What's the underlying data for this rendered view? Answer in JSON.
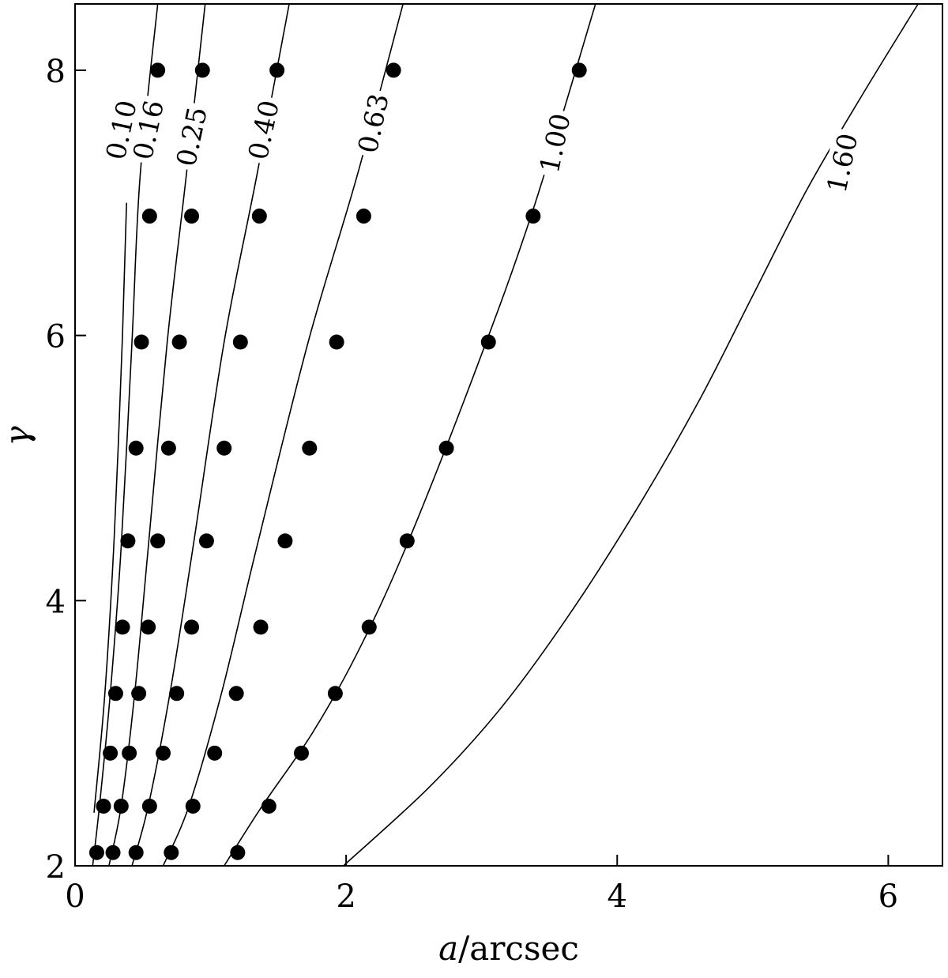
{
  "chart_data": {
    "type": "line",
    "title": "",
    "xlabel_math": "a",
    "xlabel_unit": "/arcsec",
    "ylabel": "γ",
    "xlim": [
      0,
      6.4
    ],
    "ylim": [
      2,
      8.5
    ],
    "xticks": [
      0,
      2,
      4,
      6
    ],
    "yticks": [
      2,
      4,
      6,
      8
    ],
    "grid": false,
    "legend": "none",
    "series": [
      {
        "name": "0.10",
        "curve": [
          [
            0.14,
            2.4
          ],
          [
            0.22,
            3.3
          ],
          [
            0.29,
            4.5
          ],
          [
            0.35,
            6.0
          ],
          [
            0.38,
            7.0
          ]
        ],
        "points": []
      },
      {
        "name": "0.16",
        "curve": [
          [
            0.13,
            2.0
          ],
          [
            0.18,
            2.45
          ],
          [
            0.26,
            3.3
          ],
          [
            0.34,
            4.4
          ],
          [
            0.42,
            5.95
          ],
          [
            0.48,
            7.2
          ],
          [
            0.61,
            8.5
          ]
        ],
        "points": [
          [
            0.16,
            2.1
          ],
          [
            0.21,
            2.45
          ],
          [
            0.26,
            2.85
          ],
          [
            0.3,
            3.3
          ],
          [
            0.35,
            3.8
          ],
          [
            0.39,
            4.45
          ],
          [
            0.45,
            5.15
          ],
          [
            0.49,
            5.95
          ],
          [
            0.55,
            6.9
          ],
          [
            0.61,
            8.0
          ]
        ]
      },
      {
        "name": "0.25",
        "curve": [
          [
            0.25,
            2.0
          ],
          [
            0.34,
            2.45
          ],
          [
            0.44,
            3.3
          ],
          [
            0.54,
            4.4
          ],
          [
            0.68,
            5.95
          ],
          [
            0.82,
            7.2
          ],
          [
            0.96,
            8.5
          ]
        ],
        "points": [
          [
            0.28,
            2.1
          ],
          [
            0.34,
            2.45
          ],
          [
            0.4,
            2.85
          ],
          [
            0.47,
            3.3
          ],
          [
            0.54,
            3.8
          ],
          [
            0.61,
            4.45
          ],
          [
            0.69,
            5.15
          ],
          [
            0.77,
            5.95
          ],
          [
            0.86,
            6.9
          ],
          [
            0.94,
            8.0
          ]
        ]
      },
      {
        "name": "0.40",
        "curve": [
          [
            0.42,
            2.0
          ],
          [
            0.54,
            2.45
          ],
          [
            0.7,
            3.3
          ],
          [
            0.87,
            4.4
          ],
          [
            1.1,
            5.95
          ],
          [
            1.34,
            7.2
          ],
          [
            1.58,
            8.5
          ]
        ],
        "points": [
          [
            0.45,
            2.1
          ],
          [
            0.55,
            2.45
          ],
          [
            0.65,
            2.85
          ],
          [
            0.75,
            3.3
          ],
          [
            0.86,
            3.8
          ],
          [
            0.97,
            4.45
          ],
          [
            1.1,
            5.15
          ],
          [
            1.22,
            5.95
          ],
          [
            1.36,
            6.9
          ],
          [
            1.49,
            8.0
          ]
        ]
      },
      {
        "name": "0.63",
        "curve": [
          [
            0.65,
            2.0
          ],
          [
            0.84,
            2.45
          ],
          [
            1.08,
            3.3
          ],
          [
            1.34,
            4.4
          ],
          [
            1.72,
            5.95
          ],
          [
            2.08,
            7.2
          ],
          [
            2.42,
            8.5
          ]
        ],
        "points": [
          [
            0.71,
            2.1
          ],
          [
            0.87,
            2.45
          ],
          [
            1.03,
            2.85
          ],
          [
            1.19,
            3.3
          ],
          [
            1.37,
            3.8
          ],
          [
            1.55,
            4.45
          ],
          [
            1.73,
            5.15
          ],
          [
            1.93,
            5.95
          ],
          [
            2.13,
            6.9
          ],
          [
            2.35,
            8.0
          ]
        ]
      },
      {
        "name": "1.00",
        "curve": [
          [
            1.1,
            2.0
          ],
          [
            1.38,
            2.45
          ],
          [
            1.75,
            3.0
          ],
          [
            2.08,
            3.6
          ],
          [
            2.44,
            4.4
          ],
          [
            2.96,
            5.75
          ],
          [
            3.38,
            6.95
          ],
          [
            3.84,
            8.5
          ]
        ],
        "points": [
          [
            1.2,
            2.1
          ],
          [
            1.43,
            2.45
          ],
          [
            1.67,
            2.85
          ],
          [
            1.92,
            3.3
          ],
          [
            2.17,
            3.8
          ],
          [
            2.45,
            4.45
          ],
          [
            2.74,
            5.15
          ],
          [
            3.05,
            5.95
          ],
          [
            3.38,
            6.9
          ],
          [
            3.72,
            8.0
          ]
        ]
      },
      {
        "name": "1.60",
        "curve": [
          [
            1.98,
            2.0
          ],
          [
            2.62,
            2.6
          ],
          [
            3.15,
            3.2
          ],
          [
            3.65,
            3.9
          ],
          [
            4.15,
            4.7
          ],
          [
            4.6,
            5.5
          ],
          [
            5.0,
            6.3
          ],
          [
            5.4,
            7.1
          ],
          [
            5.8,
            7.8
          ],
          [
            6.22,
            8.5
          ]
        ],
        "points": []
      }
    ],
    "label_positions": [
      {
        "text": "0.10",
        "x": 0.34,
        "y": 7.55
      },
      {
        "text": "0.16",
        "x": 0.54,
        "y": 7.55
      },
      {
        "text": "0.25",
        "x": 0.86,
        "y": 7.5
      },
      {
        "text": "0.40",
        "x": 1.39,
        "y": 7.55
      },
      {
        "text": "0.63",
        "x": 2.2,
        "y": 7.6
      },
      {
        "text": "1.00",
        "x": 3.54,
        "y": 7.45
      },
      {
        "text": "1.60",
        "x": 5.66,
        "y": 7.3
      }
    ]
  }
}
